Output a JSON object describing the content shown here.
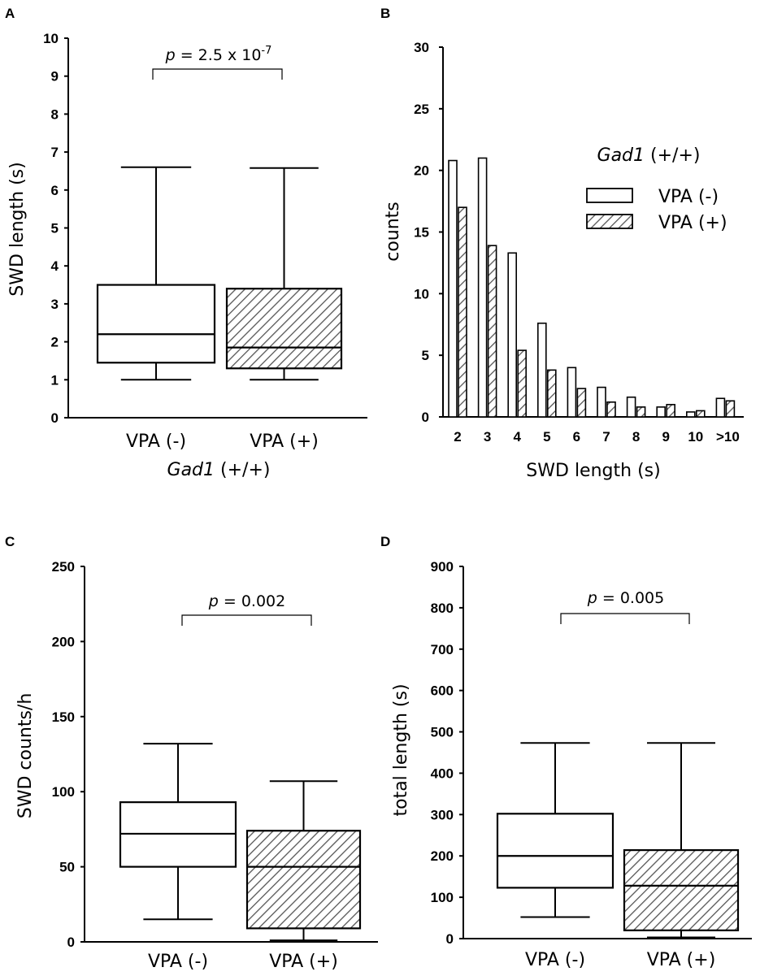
{
  "chart_data": [
    {
      "id": "A",
      "type": "box",
      "panel_label": "A",
      "ylabel": "SWD length (s)",
      "xlabel_gene": "Gad1",
      "xlabel_genotype": "(+/+)",
      "ylim": [
        0,
        10
      ],
      "yticks": [
        0,
        1,
        2,
        3,
        4,
        5,
        6,
        7,
        8,
        9,
        10
      ],
      "categories": [
        "VPA (-)",
        "VPA (+)"
      ],
      "boxes": [
        {
          "name": "VPA (-)",
          "min": 1.0,
          "q1": 1.45,
          "median": 2.2,
          "q3": 3.5,
          "max": 6.6,
          "hatched": false
        },
        {
          "name": "VPA (+)",
          "min": 1.0,
          "q1": 1.3,
          "median": 1.85,
          "q3": 3.4,
          "max": 6.58,
          "hatched": true
        }
      ],
      "pvalue": {
        "p": "p",
        "text": " = 2.5 x 10",
        "exp": "-7"
      }
    },
    {
      "id": "B",
      "type": "bar",
      "panel_label": "B",
      "ylabel": "counts",
      "xlabel": "SWD length (s)",
      "ylim": [
        0,
        30
      ],
      "yticks": [
        0,
        5,
        10,
        15,
        20,
        25,
        30
      ],
      "categories": [
        "2",
        "3",
        "4",
        "5",
        "6",
        "7",
        "8",
        "9",
        "10",
        ">10"
      ],
      "series": [
        {
          "name": "VPA (-)",
          "hatched": false,
          "values": [
            20.8,
            21.0,
            13.3,
            7.6,
            4.0,
            2.4,
            1.6,
            0.8,
            0.4,
            1.5
          ]
        },
        {
          "name": "VPA (+)",
          "hatched": true,
          "values": [
            17.0,
            13.9,
            5.4,
            3.8,
            2.3,
            1.2,
            0.8,
            1.0,
            0.5,
            1.3
          ]
        }
      ],
      "legend_title_gene": "Gad1",
      "legend_title_genotype": "(+/+)"
    },
    {
      "id": "C",
      "type": "box",
      "panel_label": "C",
      "ylabel": "SWD counts/h",
      "ylim": [
        0,
        250
      ],
      "yticks": [
        0,
        50,
        100,
        150,
        200,
        250
      ],
      "categories": [
        "VPA (-)",
        "VPA (+)"
      ],
      "boxes": [
        {
          "name": "VPA (-)",
          "min": 15,
          "q1": 50,
          "median": 72,
          "q3": 93,
          "max": 132,
          "hatched": false
        },
        {
          "name": "VPA (+)",
          "min": 1,
          "q1": 9,
          "median": 50,
          "q3": 74,
          "max": 107,
          "hatched": true
        }
      ],
      "pvalue": {
        "p": "p",
        "text": " = 0.002"
      }
    },
    {
      "id": "D",
      "type": "box",
      "panel_label": "D",
      "ylabel": "total length (s)",
      "ylim": [
        0,
        900
      ],
      "yticks": [
        0,
        100,
        200,
        300,
        400,
        500,
        600,
        700,
        800,
        900
      ],
      "categories": [
        "VPA (-)",
        "VPA (+)"
      ],
      "boxes": [
        {
          "name": "VPA (-)",
          "min": 52,
          "q1": 123,
          "median": 200,
          "q3": 302,
          "max": 473,
          "hatched": false
        },
        {
          "name": "VPA (+)",
          "min": 3,
          "q1": 20,
          "median": 128,
          "q3": 214,
          "max": 473,
          "hatched": true
        }
      ],
      "pvalue": {
        "p": "p",
        "text": " = 0.005"
      }
    }
  ]
}
